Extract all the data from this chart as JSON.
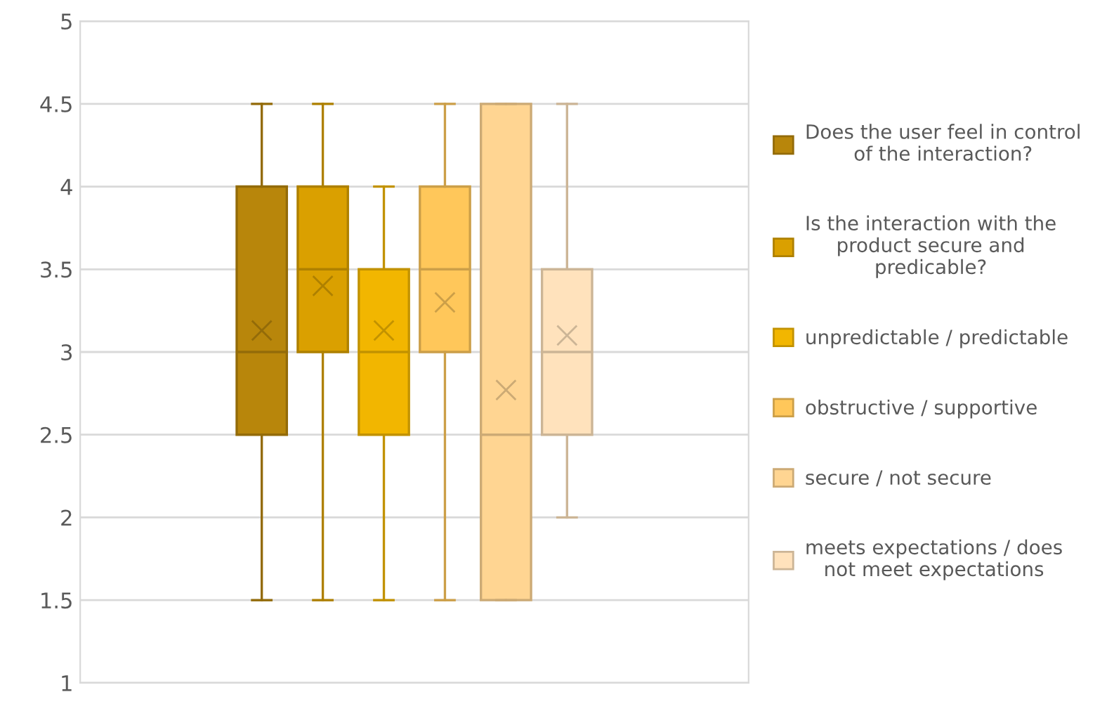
{
  "chart_data": {
    "type": "box",
    "categories": [
      null
    ],
    "ylim": [
      1,
      5
    ],
    "yticks": [
      1,
      1.5,
      2,
      2.5,
      3,
      3.5,
      4,
      4.5,
      5
    ],
    "grid": "y",
    "legend": "right",
    "marker": "cross",
    "series": [
      {
        "name": "Does the user feel in control\nof the interaction?",
        "color": "#b8860b",
        "boxes": [
          {
            "low": 1.5,
            "q1": 2.5,
            "median": 3,
            "q3": 4,
            "high": 4.5,
            "mean": 3.13
          }
        ]
      },
      {
        "name": "Is the interaction with the\nproduct secure and\npredicable?",
        "color": "#daa000",
        "boxes": [
          {
            "low": 1.5,
            "q1": 3,
            "median": 3.5,
            "q3": 4,
            "high": 4.5,
            "mean": 3.4
          }
        ]
      },
      {
        "name": "unpredictable / predictable",
        "color": "#f2b600",
        "boxes": [
          {
            "low": 1.5,
            "q1": 2.5,
            "median": 3,
            "q3": 3.5,
            "high": 4,
            "mean": 3.13
          }
        ]
      },
      {
        "name": "obstructive / supportive",
        "color": "#ffc75a",
        "boxes": [
          {
            "low": 1.5,
            "q1": 3,
            "median": 3.5,
            "q3": 4,
            "high": 4.5,
            "mean": 3.3
          }
        ]
      },
      {
        "name": "secure / not secure",
        "color": "#ffd592",
        "boxes": [
          {
            "low": 1.5,
            "q1": 1.5,
            "median": 2.5,
            "q3": 4.5,
            "high": 4.5,
            "mean": 2.77
          }
        ]
      },
      {
        "name": "meets expectations / does\nnot meet expectations",
        "color": "#ffe2bc",
        "boxes": [
          {
            "low": 2,
            "q1": 2.5,
            "median": 3,
            "q3": 3.5,
            "high": 4.5,
            "mean": 3.1
          }
        ]
      }
    ]
  }
}
